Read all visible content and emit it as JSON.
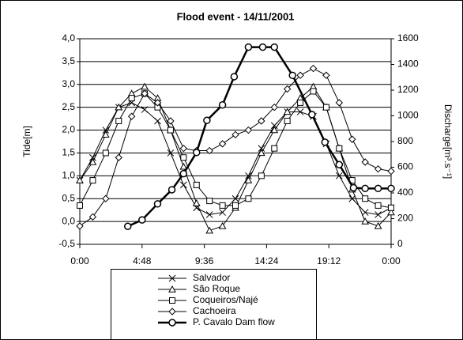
{
  "chart_data": {
    "type": "line",
    "title": "Flood event - 14/11/2001",
    "y_label": "Tide[m]",
    "y2_label": "Discharge[m³.s⁻¹]",
    "xlim": [
      0,
      24
    ],
    "xticks": [
      {
        "value": 0,
        "label": "0:00"
      },
      {
        "value": 4.8,
        "label": "4:48"
      },
      {
        "value": 9.6,
        "label": "9:36"
      },
      {
        "value": 14.4,
        "label": "14:24"
      },
      {
        "value": 19.2,
        "label": "19:12"
      },
      {
        "value": 24,
        "label": "0:00"
      }
    ],
    "ylim": [
      -0.5,
      4.0
    ],
    "yticks": [
      {
        "value": -0.5,
        "label": "-0,5"
      },
      {
        "value": 0,
        "label": "0,0"
      },
      {
        "value": 0.5,
        "label": "0,5"
      },
      {
        "value": 1,
        "label": "1,0"
      },
      {
        "value": 1.5,
        "label": "1,5"
      },
      {
        "value": 2,
        "label": "2,0"
      },
      {
        "value": 2.5,
        "label": "2,5"
      },
      {
        "value": 3,
        "label": "3,0"
      },
      {
        "value": 3.5,
        "label": "3,5"
      },
      {
        "value": 4,
        "label": "4,0"
      }
    ],
    "y2lim": [
      0,
      1600
    ],
    "y2ticks": [
      0,
      200,
      400,
      600,
      800,
      1000,
      1200,
      1400,
      1600
    ],
    "grid": true,
    "series": [
      {
        "name": "Salvador",
        "color": "#000000",
        "marker": "x",
        "x": [
          0,
          1,
          2,
          3,
          4,
          5,
          6,
          7,
          8,
          9,
          10,
          11,
          12,
          13,
          14,
          15,
          16,
          17,
          18,
          19,
          20,
          21,
          22,
          23,
          24
        ],
        "values": [
          0.9,
          1.4,
          2.0,
          2.5,
          2.6,
          2.45,
          2.2,
          1.5,
          0.8,
          0.3,
          0.15,
          0.2,
          0.5,
          1.0,
          1.6,
          2.1,
          2.4,
          2.4,
          2.3,
          1.7,
          1.0,
          0.5,
          0.2,
          0.15,
          0.3
        ]
      },
      {
        "name": "São Roque",
        "color": "#000000",
        "marker": "triangle",
        "x": [
          0,
          1,
          2,
          3,
          4,
          5,
          6,
          7,
          8,
          9,
          10,
          11,
          12,
          13,
          14,
          15,
          16,
          17,
          18,
          19,
          20,
          21,
          22,
          23,
          24
        ],
        "values": [
          0.9,
          1.3,
          1.9,
          2.5,
          2.8,
          2.95,
          2.7,
          2.0,
          1.2,
          0.4,
          -0.2,
          -0.1,
          0.3,
          0.9,
          1.5,
          2.0,
          2.4,
          2.7,
          2.95,
          2.5,
          1.6,
          0.7,
          0.0,
          -0.1,
          0.2
        ]
      },
      {
        "name": "Coqueiros/Najé",
        "color": "#000000",
        "marker": "square",
        "x": [
          0,
          1,
          2,
          3,
          4,
          5,
          6,
          7,
          8,
          9,
          10,
          11,
          12,
          13,
          14,
          15,
          16,
          17,
          18,
          19,
          20,
          21,
          22,
          23,
          24
        ],
        "values": [
          0.35,
          0.9,
          1.5,
          2.2,
          2.7,
          2.8,
          2.5,
          2.0,
          1.4,
          0.8,
          0.45,
          0.35,
          0.35,
          0.5,
          1.0,
          1.6,
          2.2,
          2.6,
          2.85,
          2.5,
          1.6,
          0.9,
          0.5,
          0.35,
          0.3
        ]
      },
      {
        "name": "Cachoeira",
        "color": "#000000",
        "marker": "diamond",
        "x": [
          0,
          1,
          2,
          3,
          4,
          5,
          6,
          7,
          8,
          9,
          10,
          11,
          12,
          13,
          14,
          15,
          16,
          17,
          18,
          19,
          20,
          21,
          22,
          23,
          24
        ],
        "values": [
          -0.1,
          0.1,
          0.5,
          1.4,
          2.3,
          2.8,
          2.6,
          2.2,
          1.6,
          1.55,
          1.55,
          1.7,
          1.9,
          2.0,
          2.2,
          2.5,
          2.9,
          3.2,
          3.35,
          3.2,
          2.6,
          1.8,
          1.3,
          1.15,
          1.1
        ]
      },
      {
        "name": "P. Cavalo Dam flow",
        "color": "#000000",
        "marker": "circle",
        "axis": "y2",
        "bold": true,
        "x": [
          3.7,
          4.8,
          6.0,
          7.1,
          8.0,
          9.0,
          9.8,
          11.0,
          11.9,
          13.0,
          14.1,
          15.0,
          16.4,
          17.9,
          18.9,
          20.0,
          21.1,
          22.0,
          23.0,
          24.0
        ],
        "values": [
          140,
          190,
          315,
          425,
          550,
          715,
          965,
          1085,
          1305,
          1535,
          1535,
          1535,
          1315,
          1010,
          795,
          620,
          440,
          435,
          435,
          435
        ]
      }
    ]
  }
}
